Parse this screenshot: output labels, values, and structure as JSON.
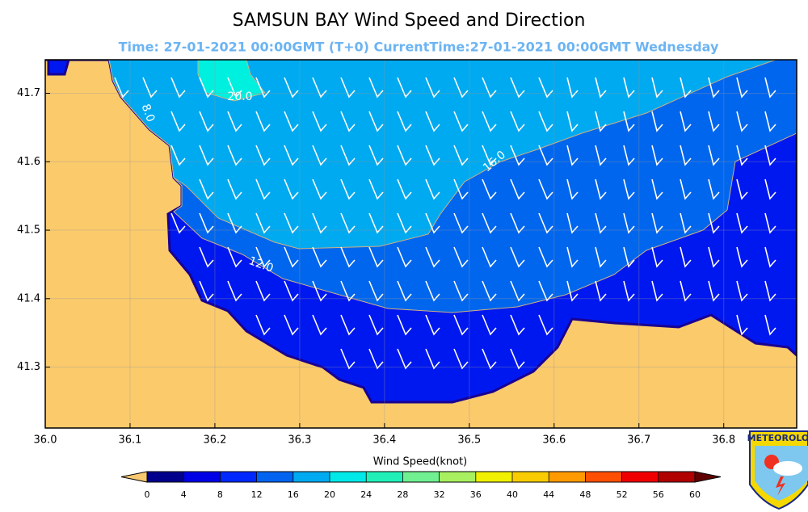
{
  "map": {
    "title": "SAMSUN BAY  Wind Speed and Direction",
    "subtitle": "Time: 27-01-2021 00:00GMT (T+0)  CurrentTime:27-01-2021 00:00GMT Wednesday",
    "xlim": [
      36.0,
      36.886
    ],
    "ylim": [
      41.211,
      41.749
    ],
    "xticks": [
      {
        "value": 36,
        "label": "36.0"
      },
      36.1,
      36.2,
      36.3,
      36.4,
      36.5,
      36.6,
      36.7,
      36.8
    ],
    "yticks": [
      41.3,
      41.4,
      41.5,
      41.6,
      41.7
    ],
    "grid": true,
    "contour_labels": [
      "20.0",
      "8.0",
      "16.0",
      "12.0"
    ],
    "colorbar": {
      "label": "Wind Speed(knot)",
      "lim": [
        0,
        60
      ],
      "ticks": [
        0,
        4,
        8,
        12,
        16,
        20,
        24,
        28,
        32,
        36,
        40,
        44,
        48,
        52,
        56,
        60
      ],
      "colors": [
        "#00008c",
        "#0000e6",
        "#0028ff",
        "#0064f0",
        "#00aaf0",
        "#00e8e8",
        "#20f0b8",
        "#70f090",
        "#a8f060",
        "#f0f000",
        "#f8cc00",
        "#ff9a00",
        "#ff5000",
        "#f00000",
        "#b00000"
      ],
      "under_color": "#f8c870",
      "over_color": "#600000"
    },
    "logo": "METEOROLOJ"
  }
}
